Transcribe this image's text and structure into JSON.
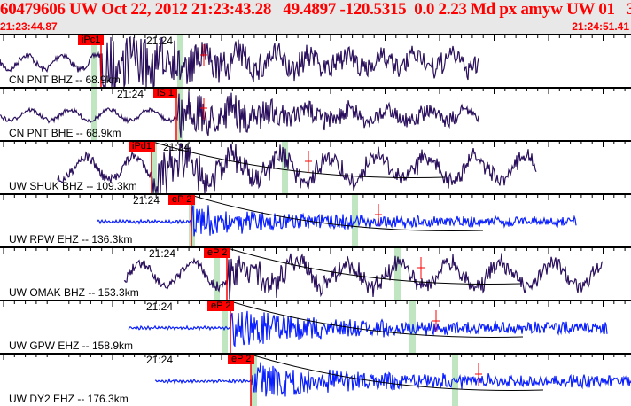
{
  "header": {
    "title": "60479606 UW Oct 22, 2012 21:23:43.28   49.4897 -120.5315  0.0 2.23 Md px amyw UW 01   3",
    "start_time": "21:23:44.87",
    "end_time": "21:24:51.41"
  },
  "colors": {
    "header_text": "#ff0000",
    "broadband": "#2a0f5c",
    "short_period": "#0a1fff",
    "pick": "#ff0000",
    "window": "#bfe6c0"
  },
  "panels": [
    {
      "label": "CN PNT BHZ -- 68.9km",
      "time_mark": "21:24",
      "pick": "iPc1",
      "type": "broadband"
    },
    {
      "label": "CN PNT BHE -- 68.9km",
      "time_mark": "21:24",
      "pick": "iS 1",
      "type": "broadband"
    },
    {
      "label": "UW SHUK BHZ -- 109.3km",
      "time_mark": "21:24",
      "pick": "iPd1",
      "type": "broadband"
    },
    {
      "label": "UW RPW EHZ -- 136.3km",
      "time_mark": "21:24",
      "pick": "eP 2",
      "type": "short_period"
    },
    {
      "label": "UW OMAK BHZ -- 153.3km",
      "time_mark": "21:24",
      "pick": "eP 2",
      "type": "broadband"
    },
    {
      "label": "UW GPW EHZ -- 158.9km",
      "time_mark": "21:24",
      "pick": "eP 2",
      "type": "short_period"
    },
    {
      "label": "UW DY2 EHZ -- 176.3km",
      "time_mark": "21:24",
      "pick": "eP 2",
      "type": "short_period"
    }
  ]
}
